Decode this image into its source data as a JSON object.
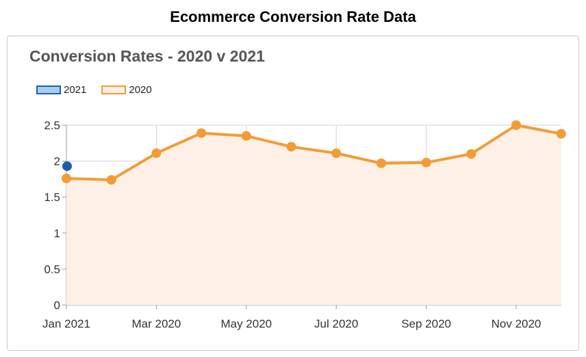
{
  "page_title": "Ecommerce Conversion Rate Data",
  "chart_data": {
    "type": "line",
    "title": "Conversion Rates - 2020 v 2021",
    "xlabel": "",
    "ylabel": "",
    "ylim": [
      0,
      2.5
    ],
    "yticks": [
      "0",
      "0.5",
      "1",
      "1.5",
      "2",
      "2.5"
    ],
    "xtick_labels": [
      "Jan 2021",
      "Mar 2020",
      "May 2020",
      "Jul 2020",
      "Sep 2020",
      "Nov 2020"
    ],
    "grid": true,
    "legend_position": "top-left",
    "series": [
      {
        "name": "2021",
        "color": "#1f5fa8",
        "fill": "#a9cdf0",
        "style": "line",
        "x": [
          "Jan"
        ],
        "values": [
          1.93
        ]
      },
      {
        "name": "2020",
        "color": "#f39c34",
        "fill": "#fdf0e6",
        "style": "area",
        "x": [
          "Jan",
          "Feb",
          "Mar",
          "Apr",
          "May",
          "Jun",
          "Jul",
          "Aug",
          "Sep",
          "Oct",
          "Nov",
          "Dec"
        ],
        "values": [
          1.76,
          1.74,
          2.11,
          2.39,
          2.35,
          2.2,
          2.11,
          1.97,
          1.98,
          2.1,
          2.5,
          2.38
        ]
      }
    ]
  }
}
